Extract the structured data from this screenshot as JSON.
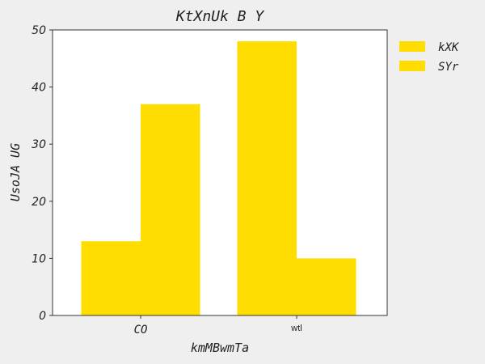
{
  "chart_data": {
    "type": "bar",
    "title": "KtXnUk B Y",
    "xlabel": "kmMBwmTa",
    "ylabel": "UsoJA UG",
    "categories": [
      "CO",
      "wtl"
    ],
    "series": [
      {
        "name": "kXK",
        "values": [
          13,
          48
        ]
      },
      {
        "name": "SYr",
        "values": [
          37,
          10
        ]
      }
    ],
    "ylim": [
      0,
      50
    ],
    "yticks": [
      0,
      10,
      20,
      30,
      40,
      50
    ],
    "grid": false,
    "legend": "outside-right",
    "colors": [
      "#ffdd00",
      "#ffdd00"
    ]
  }
}
